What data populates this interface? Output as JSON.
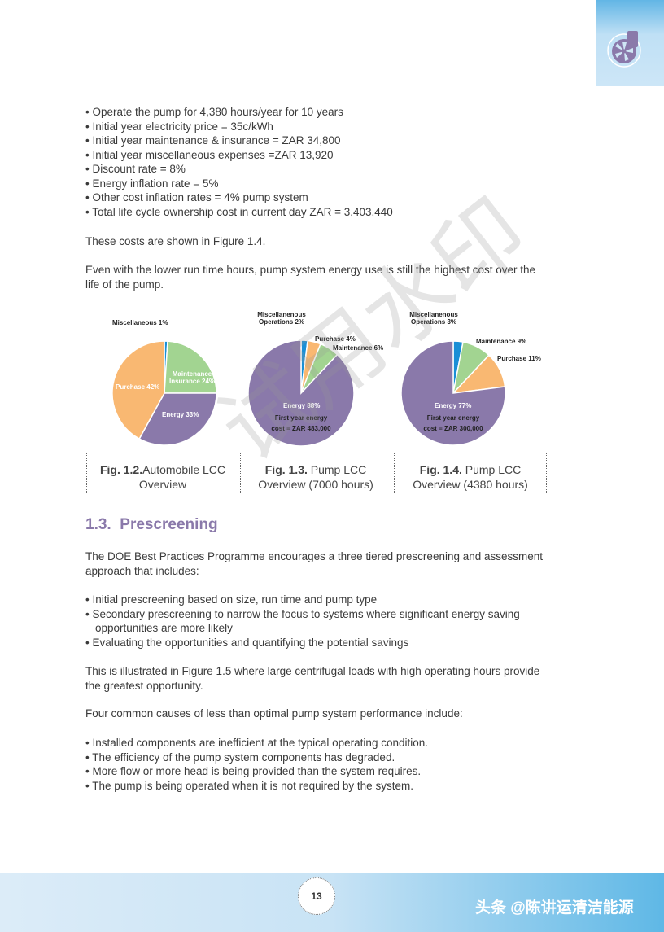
{
  "bullets1": [
    "Operate the pump for 4,380 hours/year for 10 years",
    "Initial year electricity price = 35c/kWh",
    "Initial year maintenance & insurance = ZAR 34,800",
    "Initial year miscellaneous expenses =ZAR 13,920",
    "Discount rate = 8%",
    "Energy inflation rate = 5%",
    "Other cost inflation rates = 4% pump system",
    "Total life cycle ownership cost in current day ZAR = 3,403,440"
  ],
  "para1": "These costs are shown in Figure 1.4.",
  "para2": "Even with the lower run time hours, pump system energy use is still the highest cost over the life of the pump.",
  "colors": {
    "Miscellaneous": "#1a8fd6",
    "Maintenance": "#a2d491",
    "Energy": "#8a79aa",
    "Purchase": "#f9b872",
    "heading": "#8a79aa"
  },
  "chart_data": [
    {
      "type": "pie",
      "slices": [
        {
          "label": "Miscellaneous 1%",
          "key": "Miscellaneous",
          "value": 1
        },
        {
          "label": "Maintenance Insurance 24%",
          "key": "Maintenance",
          "value": 24
        },
        {
          "label": "Energy 33%",
          "key": "Energy",
          "value": 33
        },
        {
          "label": "Purchase 42%",
          "key": "Purchase",
          "value": 42
        }
      ],
      "caption_num": "Fig. 1.2.",
      "caption": "Automobile LCC Overview"
    },
    {
      "type": "pie",
      "slices": [
        {
          "label": "Miscellanenous Operations 2%",
          "key": "Miscellaneous",
          "value": 2
        },
        {
          "label": "Purchase 4%",
          "key": "Purchase",
          "value": 4
        },
        {
          "label": "Maintenance 6%",
          "key": "Maintenance",
          "value": 6
        },
        {
          "label": "Energy 88%",
          "key": "Energy",
          "value": 88
        }
      ],
      "note": "First year energy cost = ZAR 483,000",
      "caption_num": "Fig. 1.3.",
      "caption": "Pump LCC Overview (7000 hours)"
    },
    {
      "type": "pie",
      "slices": [
        {
          "label": "Miscellanenous Operations 3%",
          "key": "Miscellaneous",
          "value": 3
        },
        {
          "label": "Maintenance 9%",
          "key": "Maintenance",
          "value": 9
        },
        {
          "label": "Purchase 11%",
          "key": "Purchase",
          "value": 11
        },
        {
          "label": "Energy 77%",
          "key": "Energy",
          "value": 77
        }
      ],
      "note": "First year energy cost = ZAR 300,000",
      "caption_num": "Fig. 1.4.",
      "caption": "Pump LCC Overview (4380 hours)"
    }
  ],
  "section": {
    "number": "1.3.",
    "title": "Prescreening"
  },
  "para3": "The DOE Best Practices Programme encourages a three tiered prescreening and assessment approach that includes:",
  "bullets2": [
    "Initial prescreening based on size, run time and pump type",
    "Secondary prescreening to narrow the focus to systems where significant energy saving opportunities are more likely",
    "Evaluating the opportunities and quantifying the potential savings"
  ],
  "para4": "This is illustrated in Figure 1.5 where large centrifugal loads with high operating hours provide the greatest opportunity.",
  "para5": "Four common causes of less than optimal pump system performance include:",
  "bullets3": [
    "Installed components are inefficient at the typical operating condition.",
    "The efficiency of the pump system components has degraded.",
    "More flow or more head is being provided than the system requires.",
    "The pump is being operated when it is not required by the system."
  ],
  "page_number": "13",
  "watermark_trial": "试用水印",
  "watermark_source": "头条 @陈讲运清洁能源"
}
